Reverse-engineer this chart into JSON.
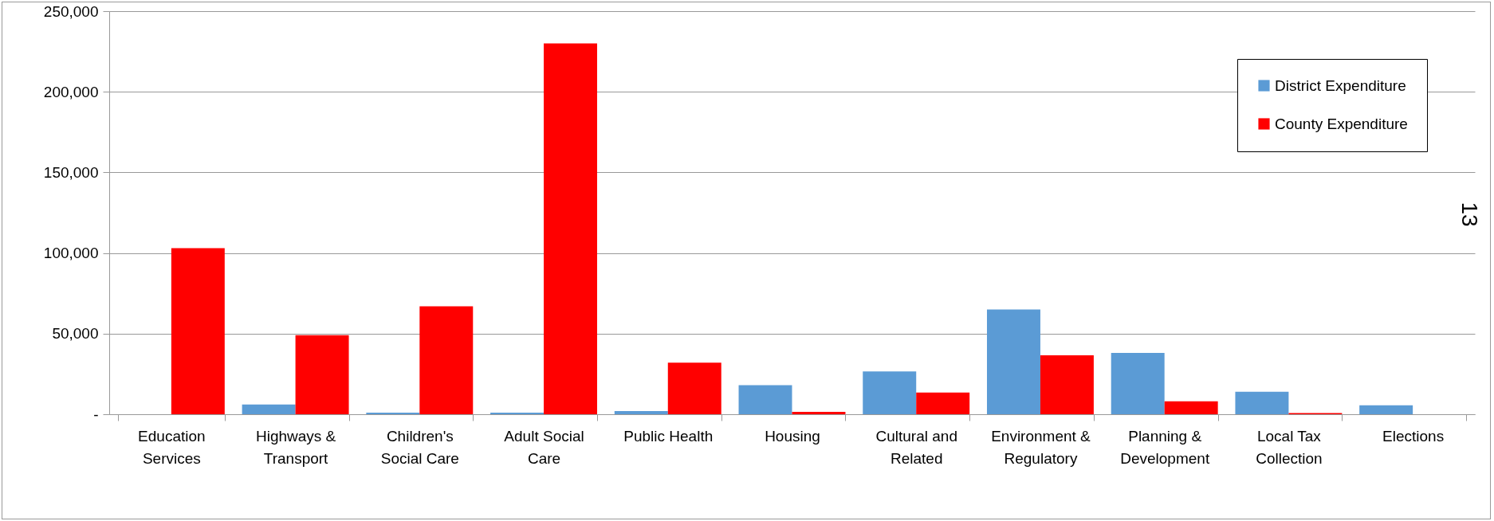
{
  "chart_data": {
    "type": "bar",
    "categories": [
      "Education Services",
      "Highways & Transport",
      "Children's Social Care",
      "Adult Social Care",
      "Public Health",
      "Housing",
      "Cultural and Related",
      "Environment & Regulatory",
      "Planning & Development",
      "Local Tax Collection",
      "Elections"
    ],
    "series": [
      {
        "name": "District Expenditure",
        "color": "#5b9bd5",
        "values": [
          null,
          6000,
          1000,
          1000,
          2000,
          18000,
          26500,
          65000,
          38000,
          14000,
          5500
        ]
      },
      {
        "name": "County Expenditure",
        "color": "#ff0000",
        "values": [
          103000,
          49000,
          67000,
          230000,
          32000,
          1500,
          13500,
          36500,
          8000,
          800,
          null
        ]
      }
    ],
    "ylim": [
      0,
      250000
    ],
    "yticks": [
      {
        "value": 0,
        "label": "-"
      },
      {
        "value": 50000,
        "label": "50,000"
      },
      {
        "value": 100000,
        "label": "100,000"
      },
      {
        "value": 150000,
        "label": "150,000"
      },
      {
        "value": 200000,
        "label": "200,000"
      },
      {
        "value": 250000,
        "label": "250,000"
      }
    ],
    "grid": "y",
    "legend": "top right",
    "annotations": [
      "13"
    ]
  }
}
